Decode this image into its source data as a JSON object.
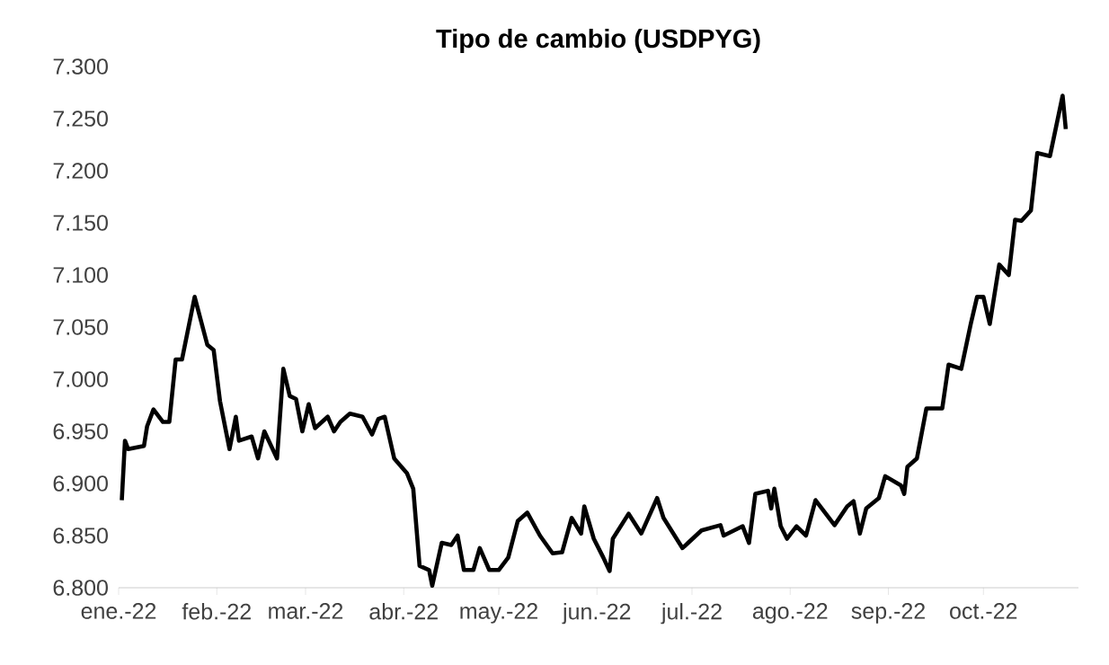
{
  "chart_data": {
    "type": "line",
    "title": "Tipo de cambio (USDPYG)",
    "xlim": [
      "2022-01-01",
      "2022-10-31"
    ],
    "xticks": [
      {
        "value": "2022-01-01",
        "label": "ene.-22"
      },
      {
        "value": "2022-02-01",
        "label": "feb.-22"
      },
      {
        "value": "2022-03-01",
        "label": "mar.-22"
      },
      {
        "value": "2022-04-01",
        "label": "abr.-22"
      },
      {
        "value": "2022-05-01",
        "label": "may.-22"
      },
      {
        "value": "2022-06-01",
        "label": "jun.-22"
      },
      {
        "value": "2022-07-01",
        "label": "jul.-22"
      },
      {
        "value": "2022-08-01",
        "label": "ago.-22"
      },
      {
        "value": "2022-09-01",
        "label": "sep.-22"
      },
      {
        "value": "2022-10-01",
        "label": "oct.-22"
      }
    ],
    "ylim": [
      6.8,
      7.3
    ],
    "yticks": [
      {
        "value": 6.8,
        "label": "6.800"
      },
      {
        "value": 6.85,
        "label": "6.850"
      },
      {
        "value": 6.9,
        "label": "6.900"
      },
      {
        "value": 6.95,
        "label": "6.950"
      },
      {
        "value": 7.0,
        "label": "7.000"
      },
      {
        "value": 7.05,
        "label": "7.050"
      },
      {
        "value": 7.1,
        "label": "7.100"
      },
      {
        "value": 7.15,
        "label": "7.150"
      },
      {
        "value": 7.2,
        "label": "7.200"
      },
      {
        "value": 7.25,
        "label": "7.250"
      },
      {
        "value": 7.3,
        "label": "7.300"
      }
    ],
    "grid": false,
    "series": [
      {
        "color": "#000000",
        "x": [
          "2022-01-02",
          "2022-01-03",
          "2022-01-04",
          "2022-01-09",
          "2022-01-10",
          "2022-01-12",
          "2022-01-15",
          "2022-01-17",
          "2022-01-19",
          "2022-01-21",
          "2022-01-25",
          "2022-01-29",
          "2022-01-31",
          "2022-02-02",
          "2022-02-05",
          "2022-02-07",
          "2022-02-08",
          "2022-02-12",
          "2022-02-14",
          "2022-02-16",
          "2022-02-20",
          "2022-02-22",
          "2022-02-24",
          "2022-02-26",
          "2022-02-28",
          "2022-03-02",
          "2022-03-04",
          "2022-03-08",
          "2022-03-10",
          "2022-03-12",
          "2022-03-15",
          "2022-03-19",
          "2022-03-22",
          "2022-03-24",
          "2022-03-26",
          "2022-03-29",
          "2022-04-02",
          "2022-04-04",
          "2022-04-06",
          "2022-04-09",
          "2022-04-10",
          "2022-04-13",
          "2022-04-16",
          "2022-04-18",
          "2022-04-20",
          "2022-04-23",
          "2022-04-25",
          "2022-04-28",
          "2022-05-01",
          "2022-05-04",
          "2022-05-07",
          "2022-05-10",
          "2022-05-14",
          "2022-05-18",
          "2022-05-21",
          "2022-05-24",
          "2022-05-27",
          "2022-05-28",
          "2022-05-31",
          "2022-06-03",
          "2022-06-05",
          "2022-06-06",
          "2022-06-11",
          "2022-06-15",
          "2022-06-20",
          "2022-06-22",
          "2022-06-28",
          "2022-07-04",
          "2022-07-10",
          "2022-07-11",
          "2022-07-17",
          "2022-07-19",
          "2022-07-21",
          "2022-07-25",
          "2022-07-26",
          "2022-07-27",
          "2022-07-29",
          "2022-07-31",
          "2022-08-03",
          "2022-08-06",
          "2022-08-09",
          "2022-08-15",
          "2022-08-19",
          "2022-08-21",
          "2022-08-23",
          "2022-08-25",
          "2022-08-29",
          "2022-08-31",
          "2022-09-05",
          "2022-09-06",
          "2022-09-07",
          "2022-09-10",
          "2022-09-13",
          "2022-09-18",
          "2022-09-20",
          "2022-09-24",
          "2022-09-27",
          "2022-09-29",
          "2022-10-01",
          "2022-10-03",
          "2022-10-06",
          "2022-10-09",
          "2022-10-11",
          "2022-10-13",
          "2022-10-16",
          "2022-10-18",
          "2022-10-22",
          "2022-10-26",
          "2022-10-27"
        ],
        "values": [
          6.884,
          6.941,
          6.933,
          6.936,
          6.955,
          6.971,
          6.959,
          6.959,
          7.019,
          7.019,
          7.079,
          7.033,
          7.028,
          6.979,
          6.933,
          6.964,
          6.941,
          6.945,
          6.924,
          6.95,
          6.924,
          7.01,
          6.984,
          6.981,
          6.95,
          6.976,
          6.953,
          6.964,
          6.95,
          6.959,
          6.967,
          6.964,
          6.947,
          6.962,
          6.964,
          6.924,
          6.91,
          6.895,
          6.821,
          6.817,
          6.802,
          6.843,
          6.841,
          6.85,
          6.817,
          6.817,
          6.838,
          6.817,
          6.817,
          6.829,
          6.864,
          6.872,
          6.85,
          6.833,
          6.834,
          6.867,
          6.852,
          6.878,
          6.847,
          6.829,
          6.816,
          6.847,
          6.871,
          6.852,
          6.886,
          6.867,
          6.838,
          6.855,
          6.86,
          6.85,
          6.859,
          6.843,
          6.89,
          6.893,
          6.876,
          6.895,
          6.859,
          6.847,
          6.859,
          6.85,
          6.884,
          6.86,
          6.878,
          6.883,
          6.852,
          6.876,
          6.886,
          6.907,
          6.898,
          6.89,
          6.916,
          6.924,
          6.972,
          6.972,
          7.014,
          7.01,
          7.053,
          7.079,
          7.079,
          7.053,
          7.11,
          7.1,
          7.153,
          7.152,
          7.162,
          7.217,
          7.214,
          7.272,
          7.24
        ]
      }
    ]
  }
}
